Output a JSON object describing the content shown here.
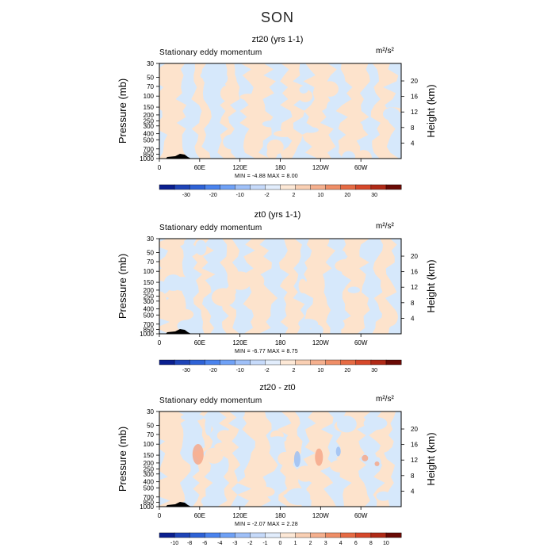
{
  "figure": {
    "title": "SON",
    "colors": {
      "light_blue": "#d6e8fb",
      "light_peach": "#fde3cc",
      "blue_mid": "#9fbff1",
      "salmon": "#f6a88a",
      "land": "#000000"
    }
  },
  "chart_data": [
    {
      "type": "heatmap",
      "title": "zt20 (yrs 1-1)",
      "left_label": "Stationary eddy momentum",
      "unit": "m²/s²",
      "xlabel": "",
      "ylabel": "Pressure (mb)",
      "y2label": "Height (km)",
      "x_ticks": [
        "0",
        "60E",
        "120E",
        "180",
        "120W",
        "60W"
      ],
      "y_ticks": [
        "30",
        "50",
        "70",
        "100",
        "150",
        "200",
        "250",
        "300",
        "400",
        "500",
        "700",
        "850",
        "1000"
      ],
      "y2_ticks": [
        "20",
        "16",
        "12",
        "8",
        "4"
      ],
      "minmax": "MIN =   -4.88   MAX =    8.00",
      "colorbar_levels": [
        "-30",
        "-20",
        "-10",
        "-2",
        "2",
        "10",
        "20",
        "30"
      ],
      "colorbar_colors": [
        "#0a1f8f",
        "#1e44b8",
        "#2e62d6",
        "#4a83ee",
        "#6fa1f6",
        "#9fc0f8",
        "#c6dafa",
        "#e2edfc",
        "#fde8d6",
        "#f9cfb3",
        "#f5b08e",
        "#ef8e67",
        "#e66b44",
        "#d6482a",
        "#b02a17",
        "#6a0a05"
      ],
      "min": -4.88,
      "max": 8.0
    },
    {
      "type": "heatmap",
      "title": "zt0 (yrs 1-1)",
      "left_label": "Stationary eddy momentum",
      "unit": "m²/s²",
      "xlabel": "",
      "ylabel": "Pressure (mb)",
      "y2label": "Height (km)",
      "x_ticks": [
        "0",
        "60E",
        "120E",
        "180",
        "120W",
        "60W"
      ],
      "y_ticks": [
        "30",
        "50",
        "70",
        "100",
        "150",
        "200",
        "250",
        "300",
        "400",
        "500",
        "700",
        "850",
        "1000"
      ],
      "y2_ticks": [
        "20",
        "16",
        "12",
        "8",
        "4"
      ],
      "minmax": "MIN =   -6.77   MAX =    8.75",
      "colorbar_levels": [
        "-30",
        "-20",
        "-10",
        "-2",
        "2",
        "10",
        "20",
        "30"
      ],
      "colorbar_colors": [
        "#0a1f8f",
        "#1e44b8",
        "#2e62d6",
        "#4a83ee",
        "#6fa1f6",
        "#9fc0f8",
        "#c6dafa",
        "#e2edfc",
        "#fde8d6",
        "#f9cfb3",
        "#f5b08e",
        "#ef8e67",
        "#e66b44",
        "#d6482a",
        "#b02a17",
        "#6a0a05"
      ],
      "min": -6.77,
      "max": 8.75
    },
    {
      "type": "heatmap",
      "title": "zt20 - zt0",
      "left_label": "Stationary eddy momentum",
      "unit": "m²/s²",
      "xlabel": "",
      "ylabel": "Pressure (mb)",
      "y2label": "Height (km)",
      "x_ticks": [
        "0",
        "60E",
        "120E",
        "180",
        "120W",
        "60W"
      ],
      "y_ticks": [
        "30",
        "50",
        "70",
        "100",
        "150",
        "200",
        "250",
        "300",
        "400",
        "500",
        "700",
        "850",
        "1000"
      ],
      "y2_ticks": [
        "20",
        "16",
        "12",
        "8",
        "4"
      ],
      "minmax": "MIN =   -2.07   MAX =    2.28",
      "colorbar_levels": [
        "-10",
        "-8",
        "-6",
        "-4",
        "-3",
        "-2",
        "-1",
        "0",
        "1",
        "2",
        "3",
        "4",
        "6",
        "8",
        "10"
      ],
      "colorbar_colors": [
        "#0a1f8f",
        "#1e44b8",
        "#2e62d6",
        "#4a83ee",
        "#6fa1f6",
        "#9fc0f8",
        "#c6dafa",
        "#e2edfc",
        "#fde8d6",
        "#f9cfb3",
        "#f5b08e",
        "#ef8e67",
        "#e66b44",
        "#d6482a",
        "#b02a17",
        "#6a0a05"
      ],
      "min": -2.07,
      "max": 2.28
    }
  ]
}
